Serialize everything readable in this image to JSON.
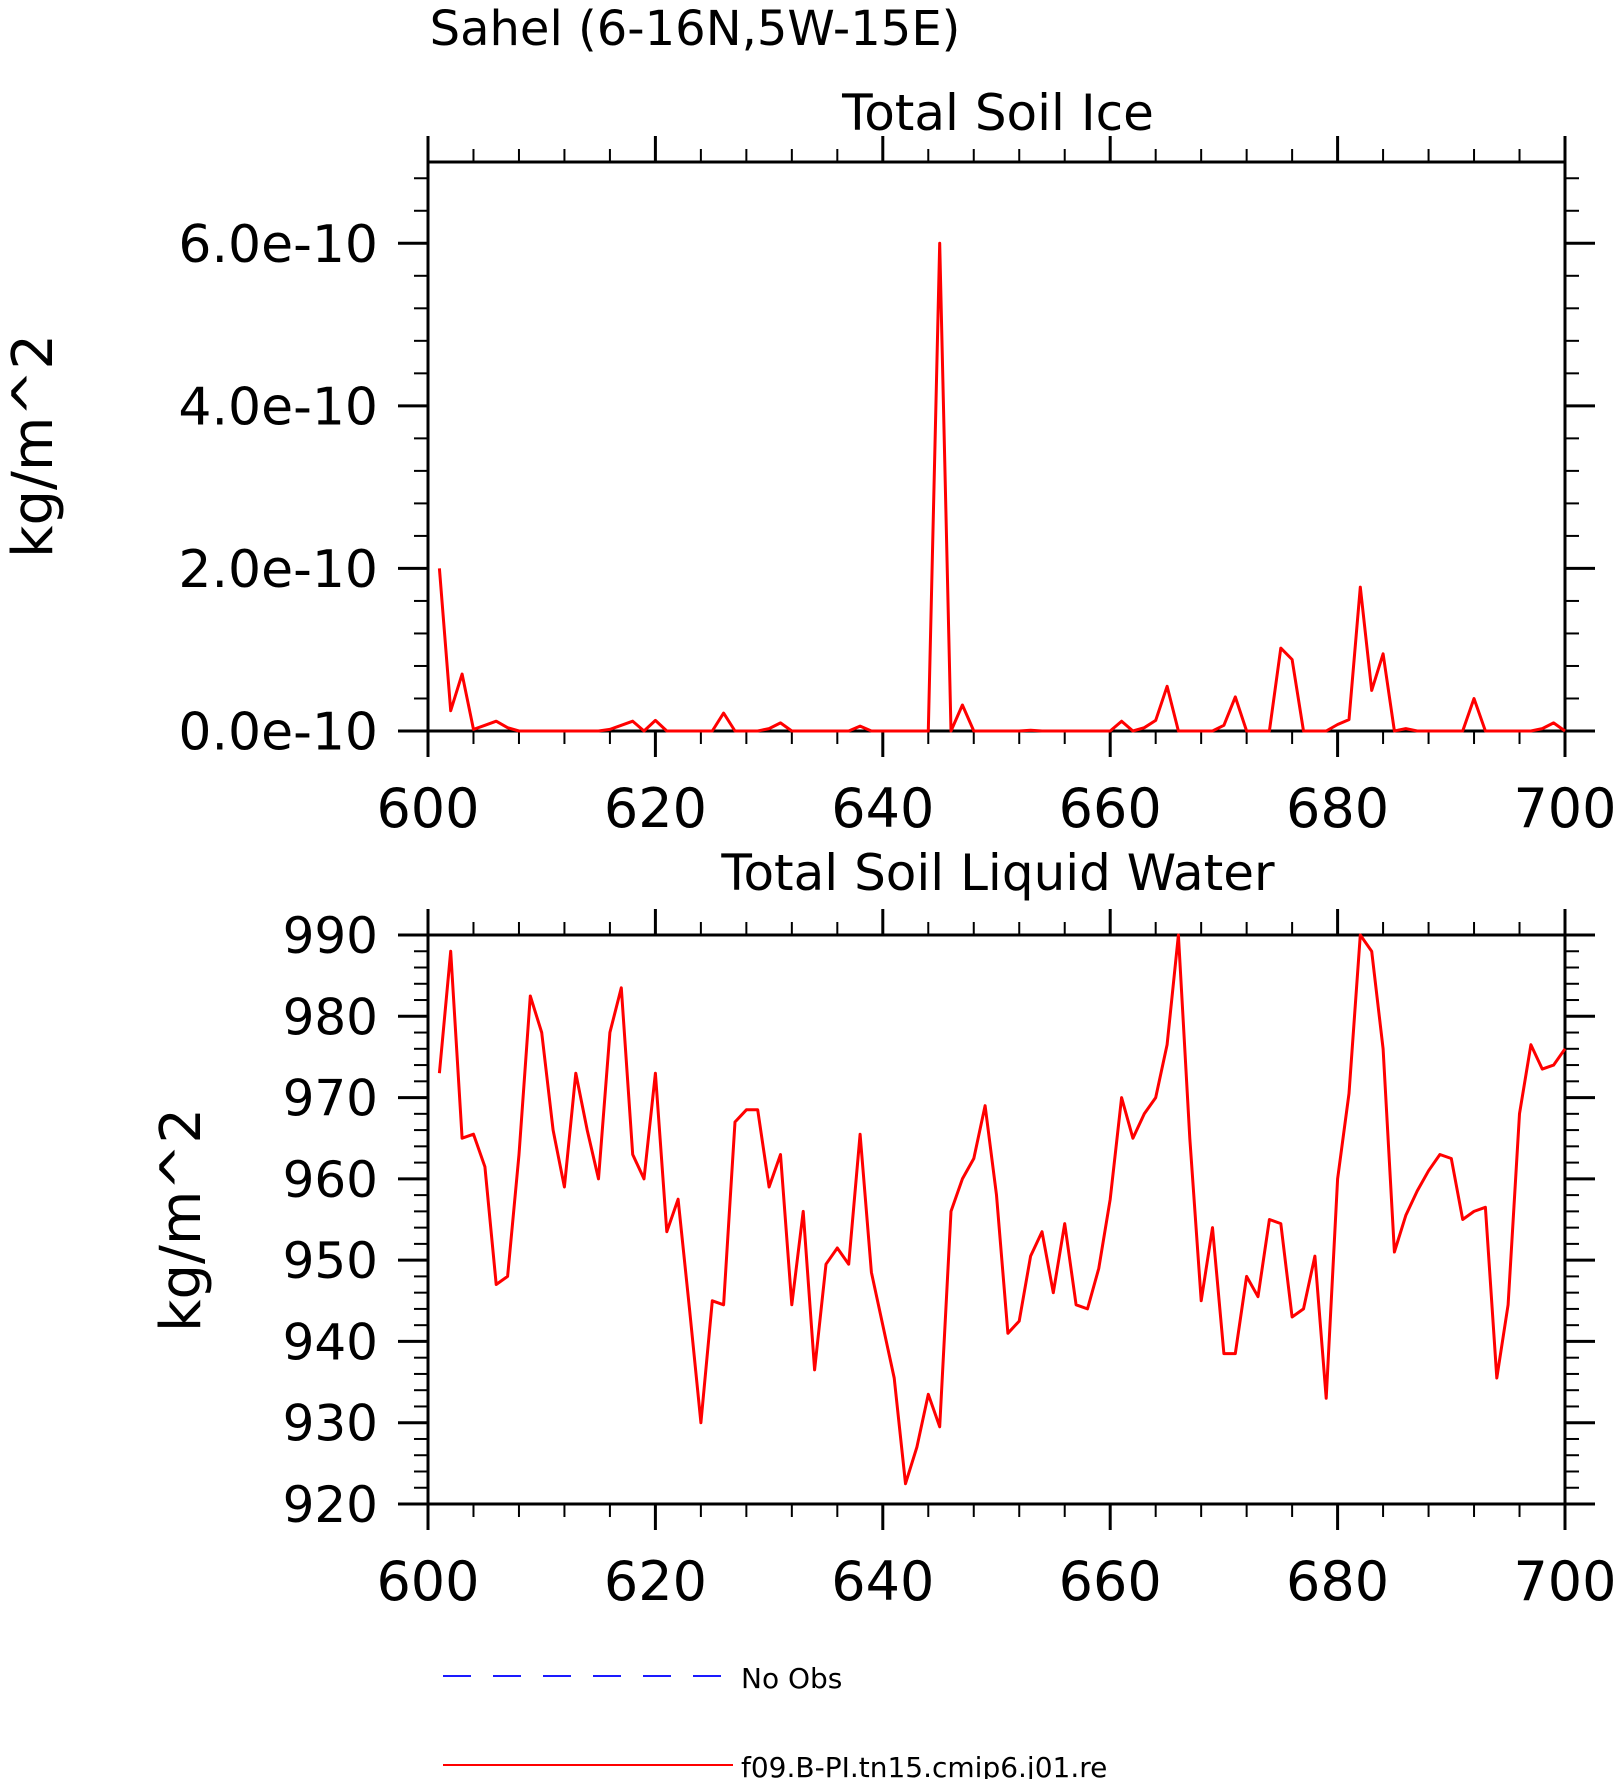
{
  "figure": {
    "title": "Sahel (6-16N,5W-15E)"
  },
  "legend": {
    "items": [
      {
        "label": "No Obs",
        "color": "#1a1aff",
        "style": "dashed"
      },
      {
        "label": "f09.B-PI.tn15.cmip6.j01.re",
        "color": "#ff0000",
        "style": "solid"
      }
    ],
    "placement": "bottom"
  },
  "chart_data": [
    {
      "type": "line",
      "title": "Total Soil Ice",
      "xlabel": "",
      "ylabel": "kg/m^2",
      "xlim": [
        600,
        700
      ],
      "ylim": [
        0,
        7e-10
      ],
      "xticks": [
        600,
        620,
        640,
        660,
        680,
        700
      ],
      "xtick_labels": [
        "600",
        "620",
        "640",
        "660",
        "680",
        "700"
      ],
      "yticks": [
        0,
        2e-10,
        4e-10,
        6e-10
      ],
      "ytick_labels": [
        "0.0e-10",
        "2.0e-10",
        "4.0e-10",
        "6.0e-10"
      ],
      "series": [
        {
          "color": "#ff0000",
          "x": [
            601,
            602,
            603,
            604,
            605,
            606,
            607,
            608,
            609,
            610,
            611,
            612,
            613,
            614,
            615,
            616,
            617,
            618,
            619,
            620,
            621,
            622,
            623,
            624,
            625,
            626,
            627,
            628,
            629,
            630,
            631,
            632,
            633,
            634,
            635,
            636,
            637,
            638,
            639,
            640,
            641,
            642,
            643,
            644,
            645,
            646,
            647,
            648,
            649,
            650,
            651,
            652,
            653,
            654,
            655,
            656,
            657,
            658,
            659,
            660,
            661,
            662,
            663,
            664,
            665,
            666,
            667,
            668,
            669,
            670,
            671,
            672,
            673,
            674,
            675,
            676,
            677,
            678,
            679,
            680,
            681,
            682,
            683,
            684,
            685,
            686,
            687,
            688,
            689,
            690,
            691,
            692,
            693,
            694,
            695,
            696,
            697,
            698,
            699,
            700
          ],
          "y": [
            2e-10,
            2.5e-11,
            7e-11,
            2e-12,
            7e-12,
            1.2e-11,
            4e-12,
            0,
            0,
            0,
            0,
            0,
            0,
            0,
            0,
            2e-12,
            7e-12,
            1.2e-11,
            0,
            1.3e-11,
            0,
            0,
            0,
            0,
            0,
            2.2e-11,
            0,
            0,
            0,
            3e-12,
            1e-11,
            0,
            0,
            0,
            0,
            0,
            0,
            6e-12,
            0,
            0,
            0,
            0,
            0,
            0,
            6e-10,
            0,
            3.2e-11,
            0,
            0,
            0,
            0,
            0,
            1e-12,
            0,
            0,
            0,
            0,
            0,
            0,
            0,
            1.2e-11,
            0,
            4e-12,
            1.3e-11,
            5.5e-11,
            0,
            0,
            0,
            0,
            7e-12,
            4.2e-11,
            0,
            0,
            0,
            1.02e-10,
            8.8e-11,
            0,
            0,
            0,
            8e-12,
            1.4e-11,
            1.77e-10,
            5e-11,
            9.5e-11,
            0,
            3e-12,
            0,
            0,
            0,
            0,
            0,
            4e-11,
            0,
            0,
            0,
            0,
            0,
            3e-12,
            1e-11,
            0
          ]
        }
      ]
    },
    {
      "type": "line",
      "title": "Total Soil Liquid Water",
      "xlabel": "",
      "ylabel": "kg/m^2",
      "xlim": [
        600,
        700
      ],
      "ylim": [
        920,
        990
      ],
      "xticks": [
        600,
        620,
        640,
        660,
        680,
        700
      ],
      "xtick_labels": [
        "600",
        "620",
        "640",
        "660",
        "680",
        "700"
      ],
      "yticks": [
        920,
        930,
        940,
        950,
        960,
        970,
        980,
        990
      ],
      "ytick_labels": [
        "920",
        "930",
        "940",
        "950",
        "960",
        "970",
        "980",
        "990"
      ],
      "series": [
        {
          "color": "#ff0000",
          "x": [
            601,
            602,
            603,
            604,
            605,
            606,
            607,
            608,
            609,
            610,
            611,
            612,
            613,
            614,
            615,
            616,
            617,
            618,
            619,
            620,
            621,
            622,
            623,
            624,
            625,
            626,
            627,
            628,
            629,
            630,
            631,
            632,
            633,
            634,
            635,
            636,
            637,
            638,
            639,
            640,
            641,
            642,
            643,
            644,
            645,
            646,
            647,
            648,
            649,
            650,
            651,
            652,
            653,
            654,
            655,
            656,
            657,
            658,
            659,
            660,
            661,
            662,
            663,
            664,
            665,
            666,
            667,
            668,
            669,
            670,
            671,
            672,
            673,
            674,
            675,
            676,
            677,
            678,
            679,
            680,
            681,
            682,
            683,
            684,
            685,
            686,
            687,
            688,
            689,
            690,
            691,
            692,
            693,
            694,
            695,
            696,
            697,
            698,
            699,
            700
          ],
          "y": [
            973,
            988,
            965,
            965.5,
            961.5,
            947,
            948,
            963,
            982.5,
            978,
            966,
            959,
            973,
            966,
            960,
            978,
            983.5,
            963,
            960,
            973,
            953.5,
            957.5,
            944,
            930,
            945,
            944.5,
            967,
            968.5,
            968.5,
            959,
            963,
            944.5,
            956,
            936.5,
            949.5,
            951.5,
            949.5,
            965.5,
            948.5,
            942,
            935.5,
            922.5,
            927,
            933.5,
            929.5,
            956,
            960,
            962.5,
            969,
            958,
            941,
            942.5,
            950.5,
            953.5,
            946,
            954.5,
            944.5,
            944,
            949,
            957.5,
            970,
            965,
            968,
            970,
            976.5,
            990,
            965,
            945,
            954,
            938.5,
            938.5,
            948,
            945.5,
            955,
            954.5,
            943,
            944,
            950.5,
            933,
            960,
            970.5,
            990,
            988,
            976,
            951,
            955.5,
            958.5,
            961,
            963,
            962.5,
            955,
            956,
            956.5,
            935.5,
            944.5,
            968,
            976.5,
            973.5,
            974,
            976
          ]
        }
      ]
    }
  ]
}
